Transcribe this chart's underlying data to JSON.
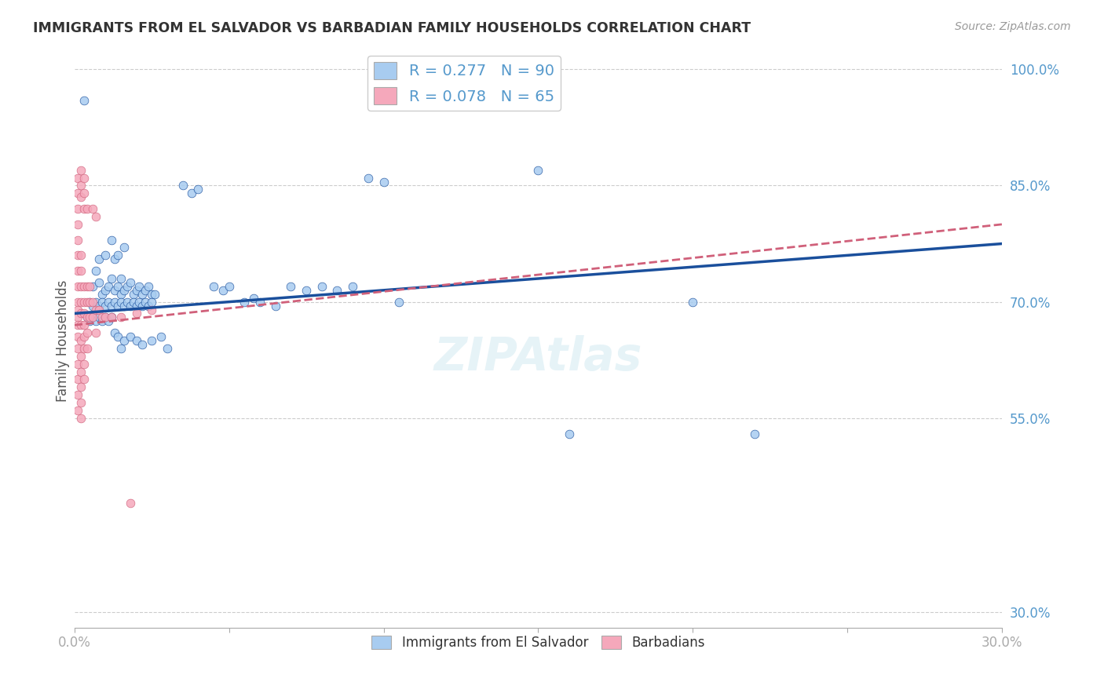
{
  "title": "IMMIGRANTS FROM EL SALVADOR VS BARBADIAN FAMILY HOUSEHOLDS CORRELATION CHART",
  "source": "Source: ZipAtlas.com",
  "ylabel": "Family Households",
  "ytick_labels": [
    "100.0%",
    "85.0%",
    "70.0%",
    "55.0%",
    "30.0%"
  ],
  "ytick_values": [
    1.0,
    0.85,
    0.7,
    0.55,
    0.3
  ],
  "xlim": [
    0.0,
    0.3
  ],
  "ylim": [
    0.28,
    1.02
  ],
  "color_blue": "#A8CCF0",
  "color_pink": "#F5A8BB",
  "line_blue": "#1A4F9C",
  "line_pink": "#D0607A",
  "title_color": "#333333",
  "axis_color": "#5599CC",
  "blue_points": [
    [
      0.003,
      0.96
    ],
    [
      0.008,
      0.755
    ],
    [
      0.01,
      0.76
    ],
    [
      0.012,
      0.78
    ],
    [
      0.013,
      0.755
    ],
    [
      0.014,
      0.76
    ],
    [
      0.015,
      0.73
    ],
    [
      0.016,
      0.77
    ],
    [
      0.006,
      0.72
    ],
    [
      0.007,
      0.74
    ],
    [
      0.008,
      0.725
    ],
    [
      0.009,
      0.71
    ],
    [
      0.01,
      0.715
    ],
    [
      0.011,
      0.72
    ],
    [
      0.012,
      0.73
    ],
    [
      0.013,
      0.715
    ],
    [
      0.014,
      0.72
    ],
    [
      0.015,
      0.71
    ],
    [
      0.016,
      0.715
    ],
    [
      0.017,
      0.72
    ],
    [
      0.018,
      0.725
    ],
    [
      0.019,
      0.71
    ],
    [
      0.02,
      0.715
    ],
    [
      0.021,
      0.72
    ],
    [
      0.022,
      0.71
    ],
    [
      0.023,
      0.715
    ],
    [
      0.024,
      0.72
    ],
    [
      0.025,
      0.71
    ],
    [
      0.005,
      0.7
    ],
    [
      0.006,
      0.695
    ],
    [
      0.007,
      0.7
    ],
    [
      0.008,
      0.695
    ],
    [
      0.009,
      0.7
    ],
    [
      0.01,
      0.695
    ],
    [
      0.011,
      0.7
    ],
    [
      0.012,
      0.695
    ],
    [
      0.013,
      0.7
    ],
    [
      0.014,
      0.695
    ],
    [
      0.015,
      0.7
    ],
    [
      0.016,
      0.695
    ],
    [
      0.017,
      0.7
    ],
    [
      0.018,
      0.695
    ],
    [
      0.019,
      0.7
    ],
    [
      0.02,
      0.695
    ],
    [
      0.021,
      0.7
    ],
    [
      0.022,
      0.695
    ],
    [
      0.023,
      0.7
    ],
    [
      0.024,
      0.695
    ],
    [
      0.025,
      0.7
    ],
    [
      0.026,
      0.71
    ],
    [
      0.004,
      0.68
    ],
    [
      0.005,
      0.675
    ],
    [
      0.006,
      0.68
    ],
    [
      0.007,
      0.675
    ],
    [
      0.008,
      0.68
    ],
    [
      0.009,
      0.675
    ],
    [
      0.01,
      0.68
    ],
    [
      0.011,
      0.675
    ],
    [
      0.012,
      0.68
    ],
    [
      0.013,
      0.66
    ],
    [
      0.014,
      0.655
    ],
    [
      0.015,
      0.64
    ],
    [
      0.016,
      0.65
    ],
    [
      0.018,
      0.655
    ],
    [
      0.02,
      0.65
    ],
    [
      0.022,
      0.645
    ],
    [
      0.025,
      0.65
    ],
    [
      0.028,
      0.655
    ],
    [
      0.03,
      0.64
    ],
    [
      0.035,
      0.85
    ],
    [
      0.038,
      0.84
    ],
    [
      0.04,
      0.845
    ],
    [
      0.045,
      0.72
    ],
    [
      0.048,
      0.715
    ],
    [
      0.05,
      0.72
    ],
    [
      0.055,
      0.7
    ],
    [
      0.058,
      0.705
    ],
    [
      0.06,
      0.7
    ],
    [
      0.065,
      0.695
    ],
    [
      0.07,
      0.72
    ],
    [
      0.075,
      0.715
    ],
    [
      0.08,
      0.72
    ],
    [
      0.085,
      0.715
    ],
    [
      0.09,
      0.72
    ],
    [
      0.095,
      0.86
    ],
    [
      0.1,
      0.855
    ],
    [
      0.105,
      0.7
    ],
    [
      0.15,
      0.87
    ],
    [
      0.16,
      0.53
    ],
    [
      0.2,
      0.7
    ],
    [
      0.22,
      0.53
    ]
  ],
  "pink_points": [
    [
      0.001,
      0.86
    ],
    [
      0.001,
      0.84
    ],
    [
      0.001,
      0.82
    ],
    [
      0.001,
      0.8
    ],
    [
      0.001,
      0.78
    ],
    [
      0.001,
      0.76
    ],
    [
      0.001,
      0.74
    ],
    [
      0.001,
      0.72
    ],
    [
      0.001,
      0.7
    ],
    [
      0.001,
      0.69
    ],
    [
      0.001,
      0.68
    ],
    [
      0.001,
      0.67
    ],
    [
      0.001,
      0.655
    ],
    [
      0.001,
      0.64
    ],
    [
      0.001,
      0.62
    ],
    [
      0.001,
      0.6
    ],
    [
      0.001,
      0.58
    ],
    [
      0.001,
      0.56
    ],
    [
      0.002,
      0.87
    ],
    [
      0.002,
      0.85
    ],
    [
      0.002,
      0.835
    ],
    [
      0.002,
      0.76
    ],
    [
      0.002,
      0.74
    ],
    [
      0.002,
      0.72
    ],
    [
      0.002,
      0.7
    ],
    [
      0.002,
      0.685
    ],
    [
      0.002,
      0.67
    ],
    [
      0.002,
      0.65
    ],
    [
      0.002,
      0.63
    ],
    [
      0.002,
      0.61
    ],
    [
      0.002,
      0.59
    ],
    [
      0.002,
      0.57
    ],
    [
      0.002,
      0.55
    ],
    [
      0.003,
      0.86
    ],
    [
      0.003,
      0.84
    ],
    [
      0.003,
      0.82
    ],
    [
      0.003,
      0.72
    ],
    [
      0.003,
      0.7
    ],
    [
      0.003,
      0.685
    ],
    [
      0.003,
      0.67
    ],
    [
      0.003,
      0.655
    ],
    [
      0.003,
      0.64
    ],
    [
      0.003,
      0.62
    ],
    [
      0.003,
      0.6
    ],
    [
      0.004,
      0.82
    ],
    [
      0.004,
      0.72
    ],
    [
      0.004,
      0.7
    ],
    [
      0.004,
      0.68
    ],
    [
      0.004,
      0.66
    ],
    [
      0.004,
      0.64
    ],
    [
      0.005,
      0.72
    ],
    [
      0.005,
      0.7
    ],
    [
      0.005,
      0.68
    ],
    [
      0.006,
      0.82
    ],
    [
      0.006,
      0.7
    ],
    [
      0.006,
      0.68
    ],
    [
      0.007,
      0.81
    ],
    [
      0.007,
      0.69
    ],
    [
      0.007,
      0.66
    ],
    [
      0.008,
      0.69
    ],
    [
      0.009,
      0.68
    ],
    [
      0.01,
      0.68
    ],
    [
      0.012,
      0.68
    ],
    [
      0.015,
      0.68
    ],
    [
      0.018,
      0.44
    ],
    [
      0.02,
      0.685
    ],
    [
      0.025,
      0.69
    ]
  ]
}
